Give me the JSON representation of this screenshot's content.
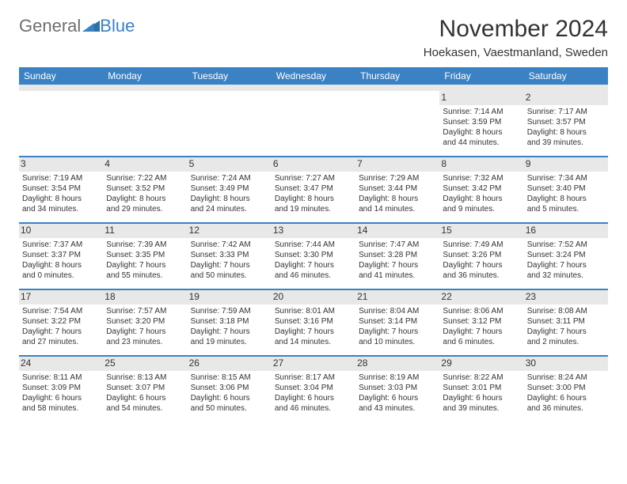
{
  "logo": {
    "word1": "General",
    "word2": "Blue"
  },
  "title": "November 2024",
  "location": "Hoekasen, Vaestmanland, Sweden",
  "header_bg": "#3b82c4",
  "header_fg": "#ffffff",
  "daynum_bg": "#e8e8e8",
  "row_border": "#3b82c4",
  "weekdays": [
    "Sunday",
    "Monday",
    "Tuesday",
    "Wednesday",
    "Thursday",
    "Friday",
    "Saturday"
  ],
  "weeks": [
    [
      {
        "n": "",
        "sr": "",
        "ss": "",
        "d1": "",
        "d2": ""
      },
      {
        "n": "",
        "sr": "",
        "ss": "",
        "d1": "",
        "d2": ""
      },
      {
        "n": "",
        "sr": "",
        "ss": "",
        "d1": "",
        "d2": ""
      },
      {
        "n": "",
        "sr": "",
        "ss": "",
        "d1": "",
        "d2": ""
      },
      {
        "n": "",
        "sr": "",
        "ss": "",
        "d1": "",
        "d2": ""
      },
      {
        "n": "1",
        "sr": "Sunrise: 7:14 AM",
        "ss": "Sunset: 3:59 PM",
        "d1": "Daylight: 8 hours",
        "d2": "and 44 minutes."
      },
      {
        "n": "2",
        "sr": "Sunrise: 7:17 AM",
        "ss": "Sunset: 3:57 PM",
        "d1": "Daylight: 8 hours",
        "d2": "and 39 minutes."
      }
    ],
    [
      {
        "n": "3",
        "sr": "Sunrise: 7:19 AM",
        "ss": "Sunset: 3:54 PM",
        "d1": "Daylight: 8 hours",
        "d2": "and 34 minutes."
      },
      {
        "n": "4",
        "sr": "Sunrise: 7:22 AM",
        "ss": "Sunset: 3:52 PM",
        "d1": "Daylight: 8 hours",
        "d2": "and 29 minutes."
      },
      {
        "n": "5",
        "sr": "Sunrise: 7:24 AM",
        "ss": "Sunset: 3:49 PM",
        "d1": "Daylight: 8 hours",
        "d2": "and 24 minutes."
      },
      {
        "n": "6",
        "sr": "Sunrise: 7:27 AM",
        "ss": "Sunset: 3:47 PM",
        "d1": "Daylight: 8 hours",
        "d2": "and 19 minutes."
      },
      {
        "n": "7",
        "sr": "Sunrise: 7:29 AM",
        "ss": "Sunset: 3:44 PM",
        "d1": "Daylight: 8 hours",
        "d2": "and 14 minutes."
      },
      {
        "n": "8",
        "sr": "Sunrise: 7:32 AM",
        "ss": "Sunset: 3:42 PM",
        "d1": "Daylight: 8 hours",
        "d2": "and 9 minutes."
      },
      {
        "n": "9",
        "sr": "Sunrise: 7:34 AM",
        "ss": "Sunset: 3:40 PM",
        "d1": "Daylight: 8 hours",
        "d2": "and 5 minutes."
      }
    ],
    [
      {
        "n": "10",
        "sr": "Sunrise: 7:37 AM",
        "ss": "Sunset: 3:37 PM",
        "d1": "Daylight: 8 hours",
        "d2": "and 0 minutes."
      },
      {
        "n": "11",
        "sr": "Sunrise: 7:39 AM",
        "ss": "Sunset: 3:35 PM",
        "d1": "Daylight: 7 hours",
        "d2": "and 55 minutes."
      },
      {
        "n": "12",
        "sr": "Sunrise: 7:42 AM",
        "ss": "Sunset: 3:33 PM",
        "d1": "Daylight: 7 hours",
        "d2": "and 50 minutes."
      },
      {
        "n": "13",
        "sr": "Sunrise: 7:44 AM",
        "ss": "Sunset: 3:30 PM",
        "d1": "Daylight: 7 hours",
        "d2": "and 46 minutes."
      },
      {
        "n": "14",
        "sr": "Sunrise: 7:47 AM",
        "ss": "Sunset: 3:28 PM",
        "d1": "Daylight: 7 hours",
        "d2": "and 41 minutes."
      },
      {
        "n": "15",
        "sr": "Sunrise: 7:49 AM",
        "ss": "Sunset: 3:26 PM",
        "d1": "Daylight: 7 hours",
        "d2": "and 36 minutes."
      },
      {
        "n": "16",
        "sr": "Sunrise: 7:52 AM",
        "ss": "Sunset: 3:24 PM",
        "d1": "Daylight: 7 hours",
        "d2": "and 32 minutes."
      }
    ],
    [
      {
        "n": "17",
        "sr": "Sunrise: 7:54 AM",
        "ss": "Sunset: 3:22 PM",
        "d1": "Daylight: 7 hours",
        "d2": "and 27 minutes."
      },
      {
        "n": "18",
        "sr": "Sunrise: 7:57 AM",
        "ss": "Sunset: 3:20 PM",
        "d1": "Daylight: 7 hours",
        "d2": "and 23 minutes."
      },
      {
        "n": "19",
        "sr": "Sunrise: 7:59 AM",
        "ss": "Sunset: 3:18 PM",
        "d1": "Daylight: 7 hours",
        "d2": "and 19 minutes."
      },
      {
        "n": "20",
        "sr": "Sunrise: 8:01 AM",
        "ss": "Sunset: 3:16 PM",
        "d1": "Daylight: 7 hours",
        "d2": "and 14 minutes."
      },
      {
        "n": "21",
        "sr": "Sunrise: 8:04 AM",
        "ss": "Sunset: 3:14 PM",
        "d1": "Daylight: 7 hours",
        "d2": "and 10 minutes."
      },
      {
        "n": "22",
        "sr": "Sunrise: 8:06 AM",
        "ss": "Sunset: 3:12 PM",
        "d1": "Daylight: 7 hours",
        "d2": "and 6 minutes."
      },
      {
        "n": "23",
        "sr": "Sunrise: 8:08 AM",
        "ss": "Sunset: 3:11 PM",
        "d1": "Daylight: 7 hours",
        "d2": "and 2 minutes."
      }
    ],
    [
      {
        "n": "24",
        "sr": "Sunrise: 8:11 AM",
        "ss": "Sunset: 3:09 PM",
        "d1": "Daylight: 6 hours",
        "d2": "and 58 minutes."
      },
      {
        "n": "25",
        "sr": "Sunrise: 8:13 AM",
        "ss": "Sunset: 3:07 PM",
        "d1": "Daylight: 6 hours",
        "d2": "and 54 minutes."
      },
      {
        "n": "26",
        "sr": "Sunrise: 8:15 AM",
        "ss": "Sunset: 3:06 PM",
        "d1": "Daylight: 6 hours",
        "d2": "and 50 minutes."
      },
      {
        "n": "27",
        "sr": "Sunrise: 8:17 AM",
        "ss": "Sunset: 3:04 PM",
        "d1": "Daylight: 6 hours",
        "d2": "and 46 minutes."
      },
      {
        "n": "28",
        "sr": "Sunrise: 8:19 AM",
        "ss": "Sunset: 3:03 PM",
        "d1": "Daylight: 6 hours",
        "d2": "and 43 minutes."
      },
      {
        "n": "29",
        "sr": "Sunrise: 8:22 AM",
        "ss": "Sunset: 3:01 PM",
        "d1": "Daylight: 6 hours",
        "d2": "and 39 minutes."
      },
      {
        "n": "30",
        "sr": "Sunrise: 8:24 AM",
        "ss": "Sunset: 3:00 PM",
        "d1": "Daylight: 6 hours",
        "d2": "and 36 minutes."
      }
    ]
  ]
}
